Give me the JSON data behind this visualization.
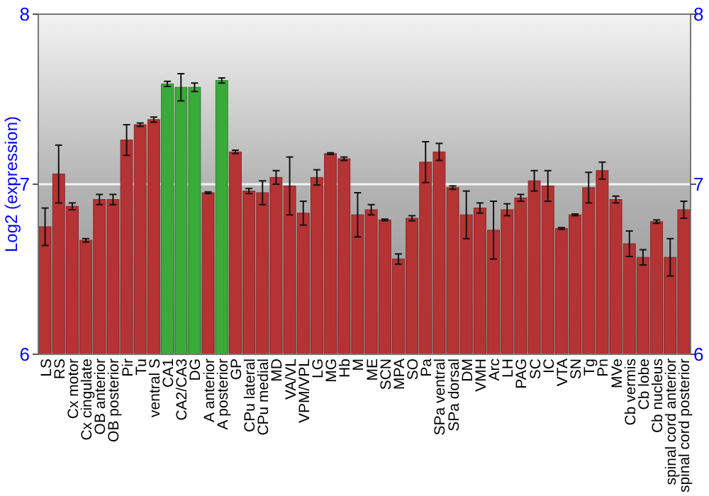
{
  "chart_data": {
    "type": "bar",
    "ylabel": "Log2 (expression)",
    "categories": [
      "LS",
      "RS",
      "Cx motor",
      "Cx cingulate",
      "OB anterior",
      "OB posterior",
      "Pir",
      "Tu",
      "ventral S",
      "CA1",
      "CA2/CA3",
      "DG",
      "A anterior",
      "A posterior",
      "GP",
      "CPu lateral",
      "CPu medial",
      "MD",
      "VA/VL",
      "VPM/VPL",
      "LG",
      "MG",
      "Hb",
      "M",
      "ME",
      "SCN",
      "MPA",
      "SO",
      "Pa",
      "SPa ventral",
      "SPa dorsal",
      "DM",
      "VMH",
      "Arc",
      "LH",
      "PAG",
      "SC",
      "IC",
      "VTA",
      "SN",
      "Tg",
      "Pn",
      "MVe",
      "Cb vermis",
      "Cb lobe",
      "Cb nucleus",
      "spinal cord anterior",
      "spinal cord posterior"
    ],
    "values": [
      6.75,
      7.06,
      6.87,
      6.67,
      6.91,
      6.91,
      7.26,
      7.35,
      7.38,
      7.59,
      7.57,
      7.57,
      6.95,
      7.61,
      7.19,
      6.96,
      6.95,
      7.04,
      6.99,
      6.83,
      7.04,
      7.18,
      7.15,
      6.82,
      6.85,
      6.79,
      6.56,
      6.8,
      7.13,
      7.19,
      6.98,
      6.82,
      6.86,
      6.73,
      6.85,
      6.92,
      7.02,
      6.99,
      6.74,
      6.82,
      6.98,
      7.08,
      6.91,
      6.65,
      6.57,
      6.78,
      6.57,
      6.85
    ],
    "errors": [
      0.11,
      0.17,
      0.02,
      0.01,
      0.03,
      0.03,
      0.09,
      0.01,
      0.015,
      0.015,
      0.08,
      0.025,
      0.005,
      0.015,
      0.01,
      0.015,
      0.07,
      0.04,
      0.17,
      0.07,
      0.045,
      0.005,
      0.01,
      0.13,
      0.03,
      0.005,
      0.03,
      0.015,
      0.12,
      0.05,
      0.01,
      0.14,
      0.03,
      0.17,
      0.035,
      0.02,
      0.06,
      0.09,
      0.005,
      0.005,
      0.09,
      0.05,
      0.02,
      0.075,
      0.045,
      0.01,
      0.11,
      0.05
    ],
    "colors": [
      "#b53333",
      "#b53333",
      "#b53333",
      "#b53333",
      "#b53333",
      "#b53333",
      "#b53333",
      "#b53333",
      "#b53333",
      "#3aaa3a",
      "#3aaa3a",
      "#3aaa3a",
      "#b53333",
      "#3aaa3a",
      "#b53333",
      "#b53333",
      "#b53333",
      "#b53333",
      "#b53333",
      "#b53333",
      "#b53333",
      "#b53333",
      "#b53333",
      "#b53333",
      "#b53333",
      "#b53333",
      "#b53333",
      "#b53333",
      "#b53333",
      "#b53333",
      "#b53333",
      "#b53333",
      "#b53333",
      "#b53333",
      "#b53333",
      "#b53333",
      "#b53333",
      "#b53333",
      "#b53333",
      "#b53333",
      "#b53333",
      "#b53333",
      "#b53333",
      "#b53333",
      "#b53333",
      "#b53333",
      "#b53333",
      "#b53333"
    ],
    "ylim": [
      6,
      8
    ],
    "yticks": [
      6,
      7,
      8
    ],
    "y2lim": [
      6,
      8
    ],
    "y2ticks": [
      6,
      7,
      8
    ],
    "grid": "y"
  }
}
